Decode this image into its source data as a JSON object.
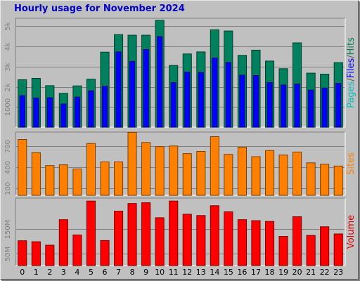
{
  "chart_data": {
    "type": "bar",
    "title": "Hourly usage for November 2024",
    "categories": [
      "0",
      "1",
      "2",
      "3",
      "4",
      "5",
      "6",
      "7",
      "8",
      "9",
      "10",
      "11",
      "12",
      "13",
      "14",
      "15",
      "16",
      "17",
      "18",
      "19",
      "20",
      "21",
      "22",
      "23"
    ],
    "panels": [
      {
        "id": "requests",
        "ylim": [
          0,
          5400
        ],
        "yticks": [
          1000,
          2000,
          3000,
          4000,
          5000
        ],
        "ytick_labels": [
          "1000",
          "2k",
          "3k",
          "4k",
          "5k"
        ],
        "series": [
          {
            "name": "Hits",
            "color": "#00805c",
            "values": [
              2350,
              2420,
              2060,
              1680,
              2050,
              2380,
              3720,
              4590,
              4560,
              4560,
              5300,
              3060,
              3630,
              3730,
              4830,
              4770,
              3560,
              3820,
              3280,
              2900,
              4180,
              2680,
              2630,
              3200
            ]
          },
          {
            "name": "Files",
            "color": "#0000ff",
            "values": [
              1560,
              1450,
              1460,
              1150,
              1490,
              1800,
              2030,
              3730,
              3260,
              3850,
              4490,
              2210,
              2730,
              2710,
              3430,
              3210,
              2580,
              2560,
              2210,
              2090,
              2140,
              1840,
              1940,
              2170
            ]
          },
          {
            "name": "Pages",
            "color": "#00c0c0",
            "values": [
              0,
              0,
              0,
              0,
              0,
              0,
              0,
              0,
              0,
              0,
              0,
              0,
              0,
              0,
              0,
              0,
              0,
              0,
              0,
              0,
              0,
              0,
              0,
              0
            ]
          }
        ],
        "axis_label_parts": [
          "Pages",
          "/",
          "Files",
          "/",
          "Hits"
        ],
        "axis_label_colors": [
          "#00c0c0",
          "#606060",
          "#0000ff",
          "#606060",
          "#00805c"
        ]
      },
      {
        "id": "sites",
        "ylim": [
          0,
          900
        ],
        "yticks": [
          100,
          400,
          700
        ],
        "ytick_labels": [
          "100",
          "400",
          "700"
        ],
        "series": [
          {
            "name": "Sites",
            "color": "#ff8000",
            "values": [
              795,
              608,
              423,
              434,
              375,
              738,
              476,
              476,
              896,
              752,
              694,
              702,
              594,
              625,
              835,
              582,
              684,
              550,
              637,
              573,
              616,
              462,
              443,
              416
            ]
          }
        ],
        "axis_label_parts": [
          "Sites"
        ],
        "axis_label_colors": [
          "#ff8000"
        ]
      },
      {
        "id": "volume",
        "ylim": [
          0,
          275000000.0
        ],
        "yticks": [
          50000000.0,
          150000000.0
        ],
        "ytick_labels": [
          "50M",
          "150M"
        ],
        "series": [
          {
            "name": "Volume",
            "color": "#ff0000",
            "values": [
              101000000.0,
              97000000.0,
              83000000.0,
              187000000.0,
              125000000.0,
              263000000.0,
              102000000.0,
              222000000.0,
              253000000.0,
              256000000.0,
              195000000.0,
              263000000.0,
              209000000.0,
              204000000.0,
              244000000.0,
              219000000.0,
              187000000.0,
              183000000.0,
              180000000.0,
              119000000.0,
              199000000.0,
              123000000.0,
              158000000.0,
              129000000.0
            ]
          }
        ],
        "axis_label_parts": [
          "Volume"
        ],
        "axis_label_colors": [
          "#e00000"
        ]
      }
    ],
    "grid": true,
    "legend": "right side, vertical"
  }
}
